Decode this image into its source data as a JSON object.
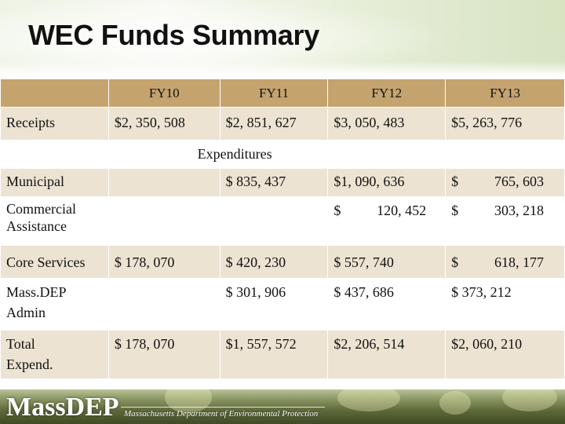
{
  "title": "WEC Funds Summary",
  "table": {
    "headers": [
      "FY10",
      "FY11",
      "FY12",
      "FY13"
    ],
    "receipts": {
      "label": "Receipts",
      "values": [
        "$2, 350, 508",
        "$2, 851, 627",
        "$3, 050, 483",
        "$5, 263, 776"
      ]
    },
    "expenditures_label": "Expenditures",
    "rows": [
      {
        "label": "Municipal",
        "fy10": "",
        "fy11": "$ 835, 437",
        "fy12": "$1, 090, 636",
        "fy13_sym": "$",
        "fy13_num": "765, 603"
      },
      {
        "label_line1": "Commercial",
        "label_line2": "Assistance",
        "fy10": "",
        "fy11": "",
        "fy12_sym": "$",
        "fy12_num": "120, 452",
        "fy13_sym": "$",
        "fy13_num": "303, 218"
      },
      {
        "label": "Core Services",
        "fy10": "$ 178, 070",
        "fy11": "$ 420, 230",
        "fy12": "$ 557, 740",
        "fy13_sym": "$",
        "fy13_num": "618, 177"
      },
      {
        "label_line1": "Mass.DEP",
        "label_line2": "Admin",
        "fy10": "",
        "fy11": "$ 301, 906",
        "fy12": "$ 437, 686",
        "fy13": "$ 373, 212"
      },
      {
        "label_line1": "Total",
        "label_line2": "Expend.",
        "fy10": "$ 178, 070",
        "fy11": "$1, 557, 572",
        "fy12": "$2, 206, 514",
        "fy13": "$2, 060, 210"
      }
    ]
  },
  "footer": {
    "logo": "MassDEP",
    "subtitle": "Massachusetts Department of Environmental Protection"
  },
  "colors": {
    "header_band": "#c4a36f",
    "row_tan": "#ece3d2",
    "footer_green": "#5e6a3a"
  }
}
